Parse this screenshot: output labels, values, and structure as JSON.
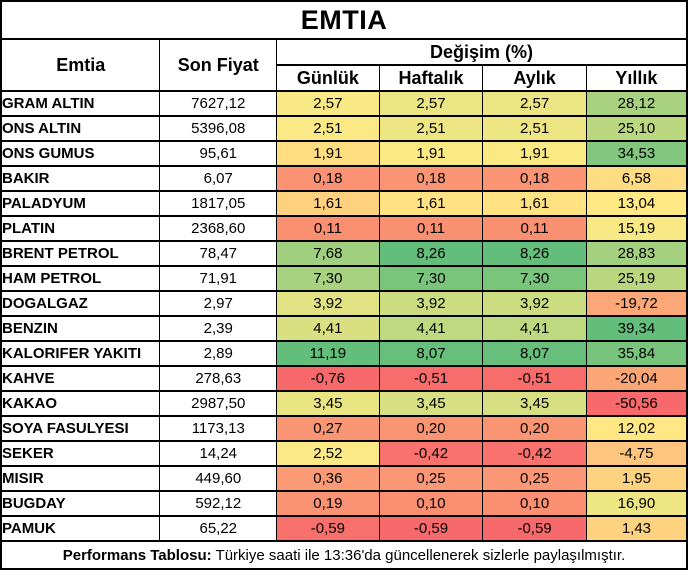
{
  "title": "EMTIA",
  "columns": {
    "emtia": "Emtia",
    "son_fiyat": "Son Fiyat",
    "degisim": "Değişim (%)",
    "sub": [
      "Günlük",
      "Haftalık",
      "Aylık",
      "Yıllık"
    ]
  },
  "rows": [
    {
      "name": "GRAM ALTIN",
      "price": "7627,12",
      "changes": [
        {
          "v": "2,57",
          "bg": "#F9E984"
        },
        {
          "v": "2,57",
          "bg": "#ECE583"
        },
        {
          "v": "2,57",
          "bg": "#ECE583"
        },
        {
          "v": "28,12",
          "bg": "#A8D27F"
        }
      ]
    },
    {
      "name": "ONS ALTIN",
      "price": "5396,08",
      "changes": [
        {
          "v": "2,51",
          "bg": "#FAE984"
        },
        {
          "v": "2,51",
          "bg": "#EDE683"
        },
        {
          "v": "2,51",
          "bg": "#EDE683"
        },
        {
          "v": "25,10",
          "bg": "#BBD780"
        }
      ]
    },
    {
      "name": "ONS GUMUS",
      "price": "95,61",
      "changes": [
        {
          "v": "1,91",
          "bg": "#FEDE81"
        },
        {
          "v": "1,91",
          "bg": "#FBEA84"
        },
        {
          "v": "1,91",
          "bg": "#FBEA84"
        },
        {
          "v": "34,53",
          "bg": "#81C77D"
        }
      ]
    },
    {
      "name": "BAKIR",
      "price": "6,07",
      "changes": [
        {
          "v": "0,18",
          "bg": "#FA9273"
        },
        {
          "v": "0,18",
          "bg": "#FA9473"
        },
        {
          "v": "0,18",
          "bg": "#FA9473"
        },
        {
          "v": "6,58",
          "bg": "#FEDC81"
        }
      ]
    },
    {
      "name": "PALADYUM",
      "price": "1817,05",
      "changes": [
        {
          "v": "1,61",
          "bg": "#FED17F"
        },
        {
          "v": "1,61",
          "bg": "#FFE382"
        },
        {
          "v": "1,61",
          "bg": "#FFE382"
        },
        {
          "v": "13,04",
          "bg": "#FFE984"
        }
      ]
    },
    {
      "name": "PLATIN",
      "price": "2368,60",
      "changes": [
        {
          "v": "0,11",
          "bg": "#FA8F72"
        },
        {
          "v": "0,11",
          "bg": "#FA9072"
        },
        {
          "v": "0,11",
          "bg": "#FA9072"
        },
        {
          "v": "15,19",
          "bg": "#F8E984"
        }
      ]
    },
    {
      "name": "BRENT PETROL",
      "price": "78,47",
      "changes": [
        {
          "v": "7,68",
          "bg": "#A0D07F"
        },
        {
          "v": "8,26",
          "bg": "#63BE7B"
        },
        {
          "v": "8,26",
          "bg": "#63BE7B"
        },
        {
          "v": "28,83",
          "bg": "#A4D17F"
        }
      ]
    },
    {
      "name": "HAM PETROL",
      "price": "71,91",
      "changes": [
        {
          "v": "7,30",
          "bg": "#A7D27F"
        },
        {
          "v": "7,30",
          "bg": "#7AC57C"
        },
        {
          "v": "7,30",
          "bg": "#7AC57C"
        },
        {
          "v": "25,19",
          "bg": "#BAD780"
        }
      ]
    },
    {
      "name": "DOGALGAZ",
      "price": "2,97",
      "changes": [
        {
          "v": "3,92",
          "bg": "#E1E282"
        },
        {
          "v": "3,92",
          "bg": "#CBDC81"
        },
        {
          "v": "3,92",
          "bg": "#CBDC81"
        },
        {
          "v": "-19,72",
          "bg": "#FBA777"
        }
      ]
    },
    {
      "name": "BENZIN",
      "price": "2,39",
      "changes": [
        {
          "v": "4,41",
          "bg": "#D9E082"
        },
        {
          "v": "4,41",
          "bg": "#BFD980"
        },
        {
          "v": "4,41",
          "bg": "#BFD980"
        },
        {
          "v": "39,34",
          "bg": "#63BE7B"
        }
      ]
    },
    {
      "name": "KALORIFER YAKITI",
      "price": "2,89",
      "changes": [
        {
          "v": "11,19",
          "bg": "#63BE7B"
        },
        {
          "v": "8,07",
          "bg": "#68BF7B"
        },
        {
          "v": "8,07",
          "bg": "#68BF7B"
        },
        {
          "v": "35,84",
          "bg": "#79C47C"
        }
      ]
    },
    {
      "name": "KAHVE",
      "price": "278,63",
      "changes": [
        {
          "v": "-0,76",
          "bg": "#F8696B"
        },
        {
          "v": "-0,51",
          "bg": "#F86D6C"
        },
        {
          "v": "-0,51",
          "bg": "#F86D6C"
        },
        {
          "v": "-20,04",
          "bg": "#FBA677"
        }
      ]
    },
    {
      "name": "KAKAO",
      "price": "2987,50",
      "changes": [
        {
          "v": "3,45",
          "bg": "#EAE583"
        },
        {
          "v": "3,45",
          "bg": "#D6DF82"
        },
        {
          "v": "3,45",
          "bg": "#D6DF82"
        },
        {
          "v": "-50,56",
          "bg": "#F8696B"
        }
      ]
    },
    {
      "name": "SOYA FASULYESI",
      "price": "1173,13",
      "changes": [
        {
          "v": "0,27",
          "bg": "#FA9674"
        },
        {
          "v": "0,20",
          "bg": "#FA9573"
        },
        {
          "v": "0,20",
          "bg": "#FA9573"
        },
        {
          "v": "12,02",
          "bg": "#FFE783"
        }
      ]
    },
    {
      "name": "SEKER",
      "price": "14,24",
      "changes": [
        {
          "v": "2,52",
          "bg": "#FAE984"
        },
        {
          "v": "-0,42",
          "bg": "#F9726D"
        },
        {
          "v": "-0,42",
          "bg": "#F9726D"
        },
        {
          "v": "-4,75",
          "bg": "#FDC57D"
        }
      ]
    },
    {
      "name": "MISIR",
      "price": "449,60",
      "changes": [
        {
          "v": "0,36",
          "bg": "#FB9A74"
        },
        {
          "v": "0,25",
          "bg": "#FB9774"
        },
        {
          "v": "0,25",
          "bg": "#FB9774"
        },
        {
          "v": "1,95",
          "bg": "#FED37F"
        }
      ]
    },
    {
      "name": "BUGDAY",
      "price": "592,12",
      "changes": [
        {
          "v": "0,19",
          "bg": "#FA9373"
        },
        {
          "v": "0,10",
          "bg": "#FA8F72"
        },
        {
          "v": "0,10",
          "bg": "#FA8F72"
        },
        {
          "v": "16,90",
          "bg": "#EEE683"
        }
      ]
    },
    {
      "name": "PAMUK",
      "price": "65,22",
      "changes": [
        {
          "v": "-0,59",
          "bg": "#F8706C"
        },
        {
          "v": "-0,59",
          "bg": "#F8696B"
        },
        {
          "v": "-0,59",
          "bg": "#F8696B"
        },
        {
          "v": "1,43",
          "bg": "#FED27F"
        }
      ]
    }
  ],
  "footer": {
    "label": "Performans Tablosu:",
    "text": " Türkiye saati ile 13:36'da güncellenerek sizlerle paylaşılmıştır."
  },
  "colors": {
    "border": "#000000",
    "background": "#FFFFFF",
    "text": "#000000",
    "scale_min_red": "#F8696B",
    "scale_mid_yellow": "#FFEB84",
    "scale_max_green": "#63BE7B"
  },
  "chart_data": {
    "type": "table",
    "title": "EMTIA",
    "columns": [
      "Emtia",
      "Son Fiyat",
      "Günlük",
      "Haftalık",
      "Aylık",
      "Yıllık"
    ],
    "change_columns_group": "Değişim (%)",
    "color_scale": {
      "min": "#F8696B",
      "mid": "#FFEB84",
      "max": "#63BE7B",
      "applied": "per-column 3-color scale"
    },
    "rows": [
      [
        "GRAM ALTIN",
        7627.12,
        2.57,
        2.57,
        2.57,
        28.12
      ],
      [
        "ONS ALTIN",
        5396.08,
        2.51,
        2.51,
        2.51,
        25.1
      ],
      [
        "ONS GUMUS",
        95.61,
        1.91,
        1.91,
        1.91,
        34.53
      ],
      [
        "BAKIR",
        6.07,
        0.18,
        0.18,
        0.18,
        6.58
      ],
      [
        "PALADYUM",
        1817.05,
        1.61,
        1.61,
        1.61,
        13.04
      ],
      [
        "PLATIN",
        2368.6,
        0.11,
        0.11,
        0.11,
        15.19
      ],
      [
        "BRENT PETROL",
        78.47,
        7.68,
        8.26,
        8.26,
        28.83
      ],
      [
        "HAM PETROL",
        71.91,
        7.3,
        7.3,
        7.3,
        25.19
      ],
      [
        "DOGALGAZ",
        2.97,
        3.92,
        3.92,
        3.92,
        -19.72
      ],
      [
        "BENZIN",
        2.39,
        4.41,
        4.41,
        4.41,
        39.34
      ],
      [
        "KALORIFER YAKITI",
        2.89,
        11.19,
        8.07,
        8.07,
        35.84
      ],
      [
        "KAHVE",
        278.63,
        -0.76,
        -0.51,
        -0.51,
        -20.04
      ],
      [
        "KAKAO",
        2987.5,
        3.45,
        3.45,
        3.45,
        -50.56
      ],
      [
        "SOYA FASULYESI",
        1173.13,
        0.27,
        0.2,
        0.2,
        12.02
      ],
      [
        "SEKER",
        14.24,
        2.52,
        -0.42,
        -0.42,
        -4.75
      ],
      [
        "MISIR",
        449.6,
        0.36,
        0.25,
        0.25,
        1.95
      ],
      [
        "BUGDAY",
        592.12,
        0.19,
        0.1,
        0.1,
        16.9
      ],
      [
        "PAMUK",
        65.22,
        -0.59,
        -0.59,
        -0.59,
        1.43
      ]
    ],
    "footnote": "Performans Tablosu: Türkiye saati ile 13:36'da güncellenerek sizlerle paylaşılmıştır."
  }
}
